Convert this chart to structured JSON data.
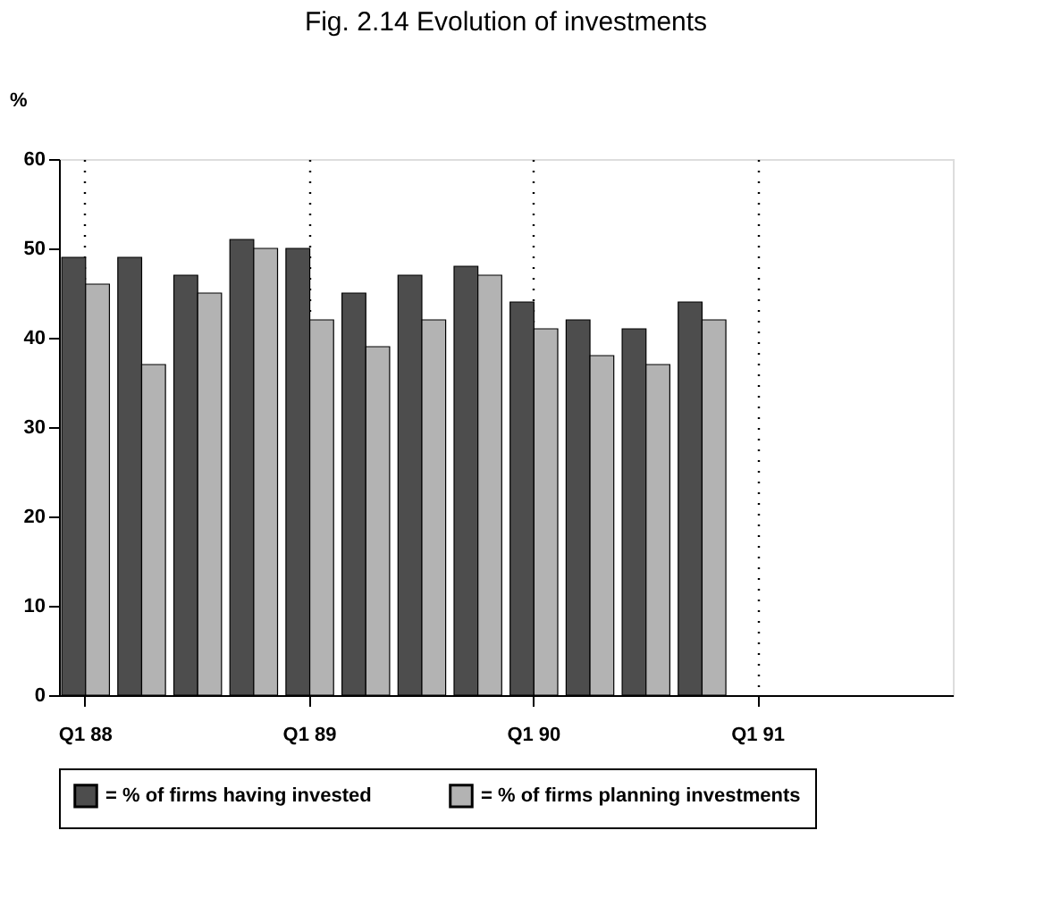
{
  "chart_data": {
    "type": "bar",
    "title": "Fig. 2.14  Evolution of investments",
    "ylabel": "%",
    "categories": [
      "Q1 88",
      null,
      null,
      null,
      "Q1 89",
      null,
      null,
      null,
      "Q1 90",
      null,
      null,
      null,
      "Q1 91",
      null,
      null,
      null
    ],
    "series": [
      {
        "name": "= % of firms having invested",
        "color": "#4d4d4d",
        "values": [
          49,
          49,
          47,
          51,
          50,
          45,
          47,
          48,
          44,
          42,
          41,
          44,
          null,
          null,
          null,
          null
        ]
      },
      {
        "name": "= % of firms planning investments",
        "color": "#b3b3b3",
        "values": [
          46,
          37,
          45,
          50,
          42,
          39,
          42,
          47,
          41,
          38,
          37,
          42,
          null,
          null,
          null,
          null
        ]
      }
    ],
    "ylim": [
      0,
      60
    ],
    "yticks": [
      0,
      10,
      20,
      30,
      40,
      50,
      60
    ],
    "grid": "x",
    "legend": "bottom"
  }
}
